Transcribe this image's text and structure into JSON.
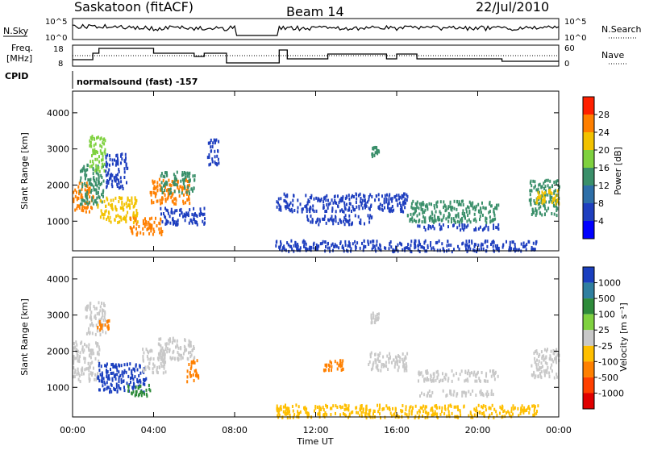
{
  "header": {
    "station": "Saskatoon (fitACF)",
    "beam": "Beam 14",
    "date": "22/Jul/2010"
  },
  "nsky_panel": {
    "left_label": "N.Sky",
    "right_label": "N.Search",
    "tick_top": "10^5",
    "tick_bottom": "10^0",
    "right_tick_top": "10^5",
    "right_tick_bottom": "10^0"
  },
  "freq_panel": {
    "left_label_line1": "Freq.",
    "left_label_line2": "[MHz]",
    "tick_top": "18",
    "tick_bottom": "8",
    "right_label": "Nave",
    "right_tick_top": "60",
    "right_tick_bottom": "0"
  },
  "cpid": {
    "label": "CPID",
    "value": "normalsound (fast) -157"
  },
  "x_axis": {
    "label": "Time UT",
    "ticks": [
      "00:00",
      "04:00",
      "08:00",
      "12:00",
      "16:00",
      "20:00",
      "00:00"
    ]
  },
  "power_colorbar": {
    "label": "Power [dB]",
    "ticks": [
      "4",
      "8",
      "12",
      "16",
      "20",
      "24",
      "28"
    ],
    "colors": [
      "#0000ff",
      "#1f3fbf",
      "#2e6fa8",
      "#3a8f6a",
      "#7fd13f",
      "#f2c200",
      "#ff7f00",
      "#ff2000"
    ]
  },
  "velocity_colorbar": {
    "label": "Velocity [m s⁻¹]",
    "ticks": [
      "1000",
      "500",
      "100",
      "25",
      "-25",
      "-100",
      "-500",
      "-1000"
    ],
    "colors": [
      "#1a3fbf",
      "#2f7fa0",
      "#2e8b3a",
      "#7fd13f",
      "#c8c8c8",
      "#ffbf00",
      "#ff8000",
      "#ff4000",
      "#e00000"
    ]
  },
  "chart_data": [
    {
      "type": "heatmap",
      "title": "Power",
      "ylabel": "Slant Range [km]",
      "ylim": [
        180,
        4600
      ],
      "yticks": [
        1000,
        2000,
        3000,
        4000
      ],
      "xlim_hours": [
        0,
        24
      ],
      "clabel": "Power [dB]",
      "regions": [
        {
          "t": [
            0.0,
            1.0
          ],
          "r": [
            1300,
            2100
          ],
          "color": "#ff7f00"
        },
        {
          "t": [
            0.3,
            1.5
          ],
          "r": [
            1500,
            2600
          ],
          "color": "#3a8f6a"
        },
        {
          "t": [
            0.8,
            1.6
          ],
          "r": [
            2400,
            3400
          ],
          "color": "#7fd13f"
        },
        {
          "t": [
            1.2,
            3.2
          ],
          "r": [
            1000,
            1700
          ],
          "color": "#f2c200"
        },
        {
          "t": [
            1.6,
            2.7
          ],
          "r": [
            1900,
            2900
          ],
          "color": "#1f3fbf"
        },
        {
          "t": [
            2.8,
            4.4
          ],
          "r": [
            650,
            1150
          ],
          "color": "#ff7f00"
        },
        {
          "t": [
            3.8,
            5.8
          ],
          "r": [
            1500,
            2200
          ],
          "color": "#ff7f00"
        },
        {
          "t": [
            4.3,
            6.0
          ],
          "r": [
            1800,
            2400
          ],
          "color": "#3a8f6a"
        },
        {
          "t": [
            4.3,
            6.5
          ],
          "r": [
            900,
            1400
          ],
          "color": "#1f3fbf"
        },
        {
          "t": [
            6.6,
            7.2
          ],
          "r": [
            2600,
            3300
          ],
          "color": "#1f3fbf"
        },
        {
          "t": [
            10.0,
            23.0
          ],
          "r": [
            200,
            500
          ],
          "color": "#1f3fbf"
        },
        {
          "t": [
            10.0,
            16.5
          ],
          "r": [
            1300,
            1800
          ],
          "color": "#1f3fbf"
        },
        {
          "t": [
            11.5,
            14.8
          ],
          "r": [
            950,
            1200
          ],
          "color": "#1f3fbf"
        },
        {
          "t": [
            14.7,
            15.1
          ],
          "r": [
            2800,
            3100
          ],
          "color": "#3a8f6a"
        },
        {
          "t": [
            16.5,
            21.0
          ],
          "r": [
            1000,
            1600
          ],
          "color": "#3a8f6a"
        },
        {
          "t": [
            17.0,
            21.0
          ],
          "r": [
            800,
            950
          ],
          "color": "#1f3fbf"
        },
        {
          "t": [
            22.5,
            24.0
          ],
          "r": [
            1200,
            2200
          ],
          "color": "#3a8f6a"
        },
        {
          "t": [
            22.8,
            24.0
          ],
          "r": [
            1500,
            1900
          ],
          "color": "#f2c200"
        }
      ]
    },
    {
      "type": "heatmap",
      "title": "Velocity",
      "ylabel": "Slant Range [km]",
      "ylim": [
        180,
        4600
      ],
      "yticks": [
        1000,
        2000,
        3000,
        4000
      ],
      "xlim_hours": [
        0,
        24
      ],
      "clabel": "Velocity [m s⁻¹]",
      "regions": [
        {
          "t": [
            0.0,
            1.3
          ],
          "r": [
            1200,
            2300
          ],
          "color": "#c8c8c8"
        },
        {
          "t": [
            0.6,
            1.6
          ],
          "r": [
            2500,
            3400
          ],
          "color": "#c8c8c8"
        },
        {
          "t": [
            1.2,
            1.8
          ],
          "r": [
            2600,
            2900
          ],
          "color": "#ff8000"
        },
        {
          "t": [
            1.2,
            3.6
          ],
          "r": [
            900,
            1700
          ],
          "color": "#1a3fbf"
        },
        {
          "t": [
            2.6,
            3.8
          ],
          "r": [
            800,
            1100
          ],
          "color": "#2e8b3a"
        },
        {
          "t": [
            3.4,
            4.6
          ],
          "r": [
            1400,
            2100
          ],
          "color": "#c8c8c8"
        },
        {
          "t": [
            4.2,
            6.0
          ],
          "r": [
            1800,
            2400
          ],
          "color": "#c8c8c8"
        },
        {
          "t": [
            5.6,
            6.2
          ],
          "r": [
            1200,
            1800
          ],
          "color": "#ff8000"
        },
        {
          "t": [
            10.0,
            23.0
          ],
          "r": [
            200,
            550
          ],
          "color": "#ffbf00"
        },
        {
          "t": [
            12.2,
            13.4
          ],
          "r": [
            1500,
            1800
          ],
          "color": "#ff8000"
        },
        {
          "t": [
            14.5,
            16.5
          ],
          "r": [
            1500,
            2000
          ],
          "color": "#c8c8c8"
        },
        {
          "t": [
            14.7,
            15.1
          ],
          "r": [
            2800,
            3100
          ],
          "color": "#c8c8c8"
        },
        {
          "t": [
            17.0,
            21.0
          ],
          "r": [
            1200,
            1500
          ],
          "color": "#c8c8c8"
        },
        {
          "t": [
            17.0,
            21.0
          ],
          "r": [
            800,
            950
          ],
          "color": "#c8c8c8"
        },
        {
          "t": [
            22.6,
            24.0
          ],
          "r": [
            1300,
            2100
          ],
          "color": "#c8c8c8"
        }
      ]
    }
  ]
}
